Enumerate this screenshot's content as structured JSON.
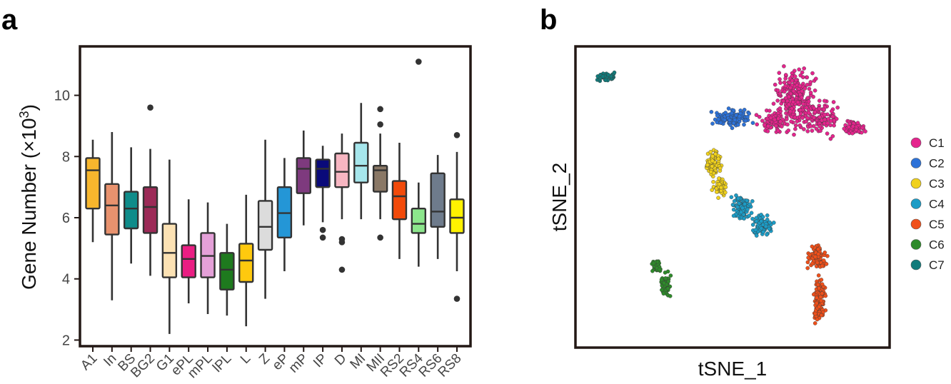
{
  "chart_data": [
    {
      "panel": "a",
      "type": "box",
      "title": "",
      "xlabel": "",
      "ylabel": "Gene Number (×10³)",
      "ylabel_main": "Gene Number (×10",
      "ylabel_sup": "3",
      "ylabel_close": ")",
      "ylim": [
        1.8,
        11.6
      ],
      "yticks": [
        2,
        4,
        6,
        8,
        10
      ],
      "categories": [
        "A1",
        "In",
        "BS",
        "BG2",
        "G1",
        "ePL",
        "mPL",
        "lPL",
        "L",
        "Z",
        "eP",
        "mP",
        "IP",
        "D",
        "MI",
        "MII",
        "RS2",
        "RS4",
        "RS6",
        "RS8"
      ],
      "colors": [
        "#F8B62D",
        "#E8926E",
        "#0F8C8A",
        "#9C2A57",
        "#FCE2B4",
        "#EA1E83",
        "#E4A0D8",
        "#1E7A1E",
        "#FFC90E",
        "#DCDCDC",
        "#2496D6",
        "#7E3A7E",
        "#0A0A7A",
        "#F7B6C2",
        "#A6E6EC",
        "#8A7866",
        "#F24A0A",
        "#8CE68C",
        "#6E7B8C",
        "#FFF200"
      ],
      "boxes": [
        {
          "whisker_low": 5.2,
          "q1": 6.3,
          "median": 7.55,
          "q3": 7.95,
          "whisker_high": 8.55,
          "outliers": []
        },
        {
          "whisker_low": 3.3,
          "q1": 5.45,
          "median": 6.4,
          "q3": 7.1,
          "whisker_high": 8.8,
          "outliers": []
        },
        {
          "whisker_low": 4.5,
          "q1": 5.65,
          "median": 6.3,
          "q3": 6.85,
          "whisker_high": 8.3,
          "outliers": []
        },
        {
          "whisker_low": 4.1,
          "q1": 5.5,
          "median": 6.35,
          "q3": 7.0,
          "whisker_high": 8.25,
          "outliers": [
            9.6
          ]
        },
        {
          "whisker_low": 2.2,
          "q1": 4.05,
          "median": 4.85,
          "q3": 5.8,
          "whisker_high": 7.9,
          "outliers": []
        },
        {
          "whisker_low": 3.2,
          "q1": 4.05,
          "median": 4.65,
          "q3": 5.1,
          "whisker_high": 6.6,
          "outliers": []
        },
        {
          "whisker_low": 2.85,
          "q1": 4.05,
          "median": 4.75,
          "q3": 5.5,
          "whisker_high": 6.5,
          "outliers": []
        },
        {
          "whisker_low": 2.8,
          "q1": 3.65,
          "median": 4.3,
          "q3": 4.85,
          "whisker_high": 5.8,
          "outliers": []
        },
        {
          "whisker_low": 2.45,
          "q1": 3.9,
          "median": 4.6,
          "q3": 5.15,
          "whisker_high": 6.75,
          "outliers": []
        },
        {
          "whisker_low": 3.35,
          "q1": 4.95,
          "median": 5.7,
          "q3": 6.55,
          "whisker_high": 8.55,
          "outliers": []
        },
        {
          "whisker_low": 4.25,
          "q1": 5.35,
          "median": 6.15,
          "q3": 7.0,
          "whisker_high": 7.95,
          "outliers": []
        },
        {
          "whisker_low": 5.75,
          "q1": 6.8,
          "median": 7.6,
          "q3": 7.95,
          "whisker_high": 8.85,
          "outliers": []
        },
        {
          "whisker_low": 5.85,
          "q1": 7.0,
          "median": 7.6,
          "q3": 7.9,
          "whisker_high": 8.35,
          "outliers": [
            5.6,
            5.35
          ]
        },
        {
          "whisker_low": 5.95,
          "q1": 7.0,
          "median": 7.5,
          "q3": 8.1,
          "whisker_high": 8.75,
          "outliers": [
            5.3,
            5.2,
            4.3
          ]
        },
        {
          "whisker_low": 5.95,
          "q1": 7.15,
          "median": 7.7,
          "q3": 8.45,
          "whisker_high": 9.75,
          "outliers": []
        },
        {
          "whisker_low": 5.95,
          "q1": 6.85,
          "median": 7.55,
          "q3": 7.7,
          "whisker_high": 8.75,
          "outliers": [
            9.55,
            9.05,
            5.35
          ]
        },
        {
          "whisker_low": 4.65,
          "q1": 5.95,
          "median": 6.7,
          "q3": 7.2,
          "whisker_high": 8.45,
          "outliers": []
        },
        {
          "whisker_low": 4.4,
          "q1": 5.5,
          "median": 5.8,
          "q3": 6.3,
          "whisker_high": 7.15,
          "outliers": [
            11.1
          ]
        },
        {
          "whisker_low": 4.65,
          "q1": 5.7,
          "median": 6.2,
          "q3": 7.45,
          "whisker_high": 8.05,
          "outliers": []
        },
        {
          "whisker_low": 4.25,
          "q1": 5.5,
          "median": 6.0,
          "q3": 6.6,
          "whisker_high": 8.15,
          "outliers": [
            8.7,
            3.35
          ]
        }
      ]
    },
    {
      "panel": "b",
      "type": "scatter",
      "title": "",
      "xlabel": "tSNE_1",
      "ylabel": "tSNE_2",
      "xlim": [
        0,
        100
      ],
      "ylim": [
        0,
        100
      ],
      "legend_position": "right",
      "series": [
        {
          "name": "C1",
          "color": "#E5248D",
          "n": 520,
          "regions": [
            {
              "x": [
                56,
                70
              ],
              "y": [
                70,
                80
              ],
              "w": 0.15
            },
            {
              "x": [
                62,
                78
              ],
              "y": [
                70,
                96
              ],
              "w": 0.5
            },
            {
              "x": [
                70,
                86
              ],
              "y": [
                68,
                84
              ],
              "w": 0.2
            },
            {
              "x": [
                84,
                93
              ],
              "y": [
                70,
                76
              ],
              "w": 0.15
            }
          ]
        },
        {
          "name": "C2",
          "color": "#2D72D8",
          "n": 110,
          "regions": [
            {
              "x": [
                42,
                58
              ],
              "y": [
                72,
                80
              ],
              "w": 1.0
            }
          ]
        },
        {
          "name": "C3",
          "color": "#F0D11C",
          "n": 150,
          "regions": [
            {
              "x": [
                41,
                47
              ],
              "y": [
                56,
                67
              ],
              "w": 0.6
            },
            {
              "x": [
                43,
                49
              ],
              "y": [
                49,
                58
              ],
              "w": 0.4
            }
          ]
        },
        {
          "name": "C4",
          "color": "#1C9CC6",
          "n": 190,
          "regions": [
            {
              "x": [
                49,
                57
              ],
              "y": [
                41,
                52
              ],
              "w": 0.55
            },
            {
              "x": [
                55,
                64
              ],
              "y": [
                36,
                45
              ],
              "w": 0.45
            }
          ]
        },
        {
          "name": "C5",
          "color": "#F0501A",
          "n": 210,
          "regions": [
            {
              "x": [
                73,
                81
              ],
              "y": [
                25,
                35
              ],
              "w": 0.45
            },
            {
              "x": [
                75,
                80
              ],
              "y": [
                6,
                27
              ],
              "w": 0.55
            }
          ]
        },
        {
          "name": "C6",
          "color": "#2E8A2A",
          "n": 100,
          "regions": [
            {
              "x": [
                24,
                28
              ],
              "y": [
                24,
                30
              ],
              "w": 0.35
            },
            {
              "x": [
                26,
                31
              ],
              "y": [
                15,
                26
              ],
              "w": 0.65
            }
          ]
        },
        {
          "name": "C7",
          "color": "#127B7B",
          "n": 50,
          "regions": [
            {
              "x": [
                6,
                13
              ],
              "y": [
                88,
                92
              ],
              "w": 1.0
            }
          ]
        }
      ]
    }
  ],
  "panels": {
    "a": "a",
    "b": "b"
  }
}
